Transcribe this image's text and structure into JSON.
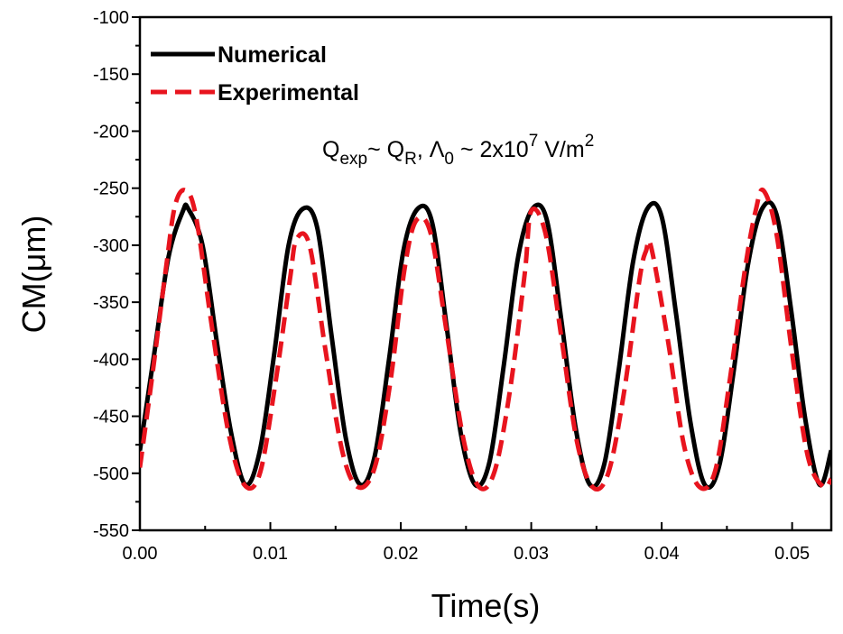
{
  "chart_data": {
    "type": "line",
    "xlabel": "Time(s)",
    "ylabel": "CM(μm)",
    "xlim": [
      0.0,
      0.053
    ],
    "ylim": [
      -550,
      -100
    ],
    "xticks": [
      0.0,
      0.01,
      0.02,
      0.03,
      0.04,
      0.05
    ],
    "xtick_labels": [
      "0.00",
      "0.01",
      "0.02",
      "0.03",
      "0.04",
      "0.05"
    ],
    "yticks": [
      -100,
      -150,
      -200,
      -250,
      -300,
      -350,
      -400,
      -450,
      -500,
      -550
    ],
    "ytick_labels": [
      "-100",
      "-150",
      "-200",
      "-250",
      "-300",
      "-350",
      "-400",
      "-450",
      "-500",
      "-550"
    ],
    "grid": false,
    "legend_position": "top-left",
    "annotation": {
      "main1": "Q",
      "sub1": "exp",
      "main2": "~ Q",
      "sub2": "R",
      "main3": ", Λ",
      "sub3": "0",
      "main4": " ~ 2x10",
      "sup4": "7",
      "main5": " V/m",
      "sup5": "2"
    },
    "series": [
      {
        "name": "Numerical",
        "color": "#000000",
        "style": "solid",
        "x": [
          0.0,
          0.0011,
          0.0022,
          0.0033,
          0.0037,
          0.0048,
          0.0059,
          0.007,
          0.0081,
          0.0092,
          0.0103,
          0.0114,
          0.0125,
          0.0136,
          0.0147,
          0.0158,
          0.0169,
          0.018,
          0.0191,
          0.0202,
          0.0213,
          0.0224,
          0.0235,
          0.0246,
          0.0257,
          0.0268,
          0.0279,
          0.029,
          0.0301,
          0.0312,
          0.0323,
          0.0334,
          0.0345,
          0.0356,
          0.0367,
          0.0378,
          0.0389,
          0.04,
          0.0411,
          0.0422,
          0.0433,
          0.0444,
          0.0455,
          0.0466,
          0.0477,
          0.0488,
          0.0499,
          0.051,
          0.0521,
          0.053
        ],
        "y": [
          -480,
          -395,
          -310,
          -270,
          -268,
          -300,
          -385,
          -465,
          -510,
          -480,
          -395,
          -300,
          -268,
          -285,
          -380,
          -470,
          -510,
          -485,
          -400,
          -305,
          -268,
          -280,
          -370,
          -465,
          -510,
          -490,
          -405,
          -310,
          -268,
          -278,
          -365,
          -460,
          -510,
          -492,
          -410,
          -315,
          -268,
          -275,
          -360,
          -455,
          -510,
          -494,
          -412,
          -318,
          -268,
          -273,
          -355,
          -452,
          -510,
          -480
        ]
      },
      {
        "name": "Experimental",
        "color": "#e8141e",
        "style": "dashed",
        "x": [
          0.0,
          0.001,
          0.002,
          0.0027,
          0.0035,
          0.0043,
          0.0055,
          0.0068,
          0.008,
          0.0092,
          0.0104,
          0.0115,
          0.012,
          0.013,
          0.0142,
          0.0155,
          0.0167,
          0.018,
          0.0192,
          0.0203,
          0.0212,
          0.0223,
          0.0235,
          0.0248,
          0.026,
          0.0272,
          0.0284,
          0.0295,
          0.03,
          0.0311,
          0.0323,
          0.0335,
          0.0347,
          0.0359,
          0.0371,
          0.0383,
          0.0388,
          0.0392,
          0.0405,
          0.0417,
          0.0429,
          0.0441,
          0.0452,
          0.0464,
          0.0472,
          0.0478,
          0.0488,
          0.05,
          0.0512,
          0.0524,
          0.053
        ],
        "y": [
          -495,
          -410,
          -320,
          -265,
          -252,
          -275,
          -370,
          -465,
          -510,
          -500,
          -420,
          -330,
          -295,
          -300,
          -390,
          -480,
          -512,
          -495,
          -420,
          -320,
          -278,
          -290,
          -375,
          -470,
          -512,
          -498,
          -425,
          -325,
          -270,
          -290,
          -380,
          -472,
          -512,
          -500,
          -430,
          -330,
          -305,
          -302,
          -385,
          -475,
          -512,
          -498,
          -420,
          -320,
          -270,
          -252,
          -290,
          -395,
          -485,
          -512,
          -505
        ]
      }
    ]
  }
}
